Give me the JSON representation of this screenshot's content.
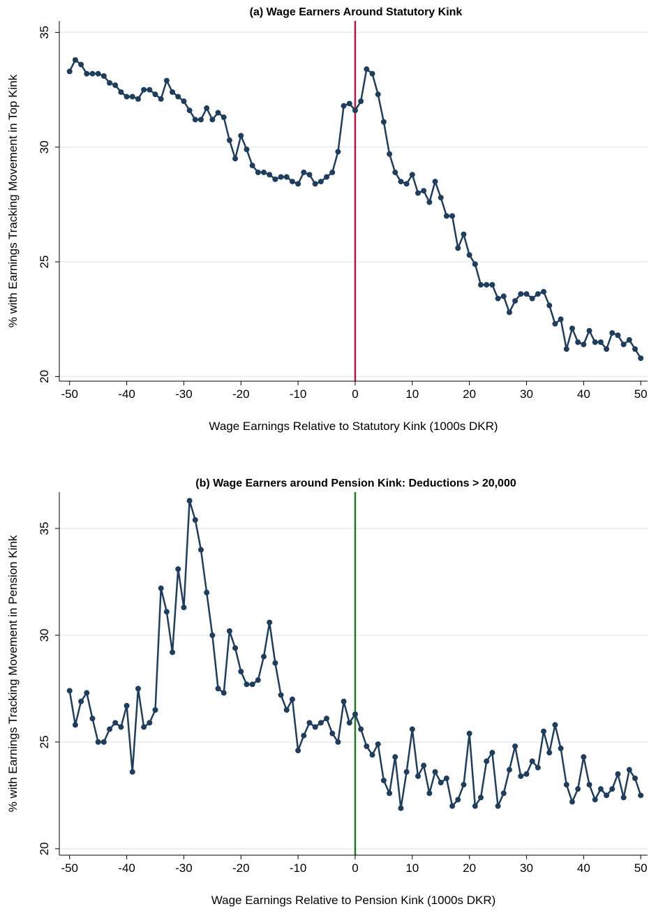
{
  "chart_data": [
    {
      "type": "line",
      "title": "(a) Wage Earners Around Statutory Kink",
      "x_label": "Wage Earnings Relative to Statutory Kink (1000s DKR)",
      "y_label": "% with Earnings Tracking Movement in Top Kink",
      "x": [
        -50,
        -49,
        -48,
        -47,
        -46,
        -45,
        -44,
        -43,
        -42,
        -41,
        -40,
        -39,
        -38,
        -37,
        -36,
        -35,
        -34,
        -33,
        -32,
        -31,
        -30,
        -29,
        -28,
        -27,
        -26,
        -25,
        -24,
        -23,
        -22,
        -21,
        -20,
        -19,
        -18,
        -17,
        -16,
        -15,
        -14,
        -13,
        -12,
        -11,
        -10,
        -9,
        -8,
        -7,
        -6,
        -5,
        -4,
        -3,
        -2,
        -1,
        0,
        1,
        2,
        3,
        4,
        5,
        6,
        7,
        8,
        9,
        10,
        11,
        12,
        13,
        14,
        15,
        16,
        17,
        18,
        19,
        20,
        21,
        22,
        23,
        24,
        25,
        26,
        27,
        28,
        29,
        30,
        31,
        32,
        33,
        34,
        35,
        36,
        37,
        38,
        39,
        40,
        41,
        42,
        43,
        44,
        45,
        46,
        47,
        48,
        49,
        50
      ],
      "series": [
        {
          "color": "#1f3d5c",
          "values": [
            33.3,
            33.8,
            33.6,
            33.2,
            33.2,
            33.2,
            33.1,
            32.8,
            32.7,
            32.4,
            32.2,
            32.2,
            32.1,
            32.5,
            32.5,
            32.3,
            32.1,
            32.9,
            32.4,
            32.2,
            32.0,
            31.6,
            31.2,
            31.2,
            31.7,
            31.2,
            31.5,
            31.3,
            30.3,
            29.5,
            30.5,
            29.9,
            29.2,
            28.9,
            28.9,
            28.8,
            28.6,
            28.7,
            28.7,
            28.5,
            28.4,
            28.9,
            28.8,
            28.4,
            28.5,
            28.7,
            28.9,
            29.8,
            31.8,
            31.9,
            31.6,
            32.0,
            33.4,
            33.2,
            32.3,
            31.1,
            29.7,
            28.9,
            28.5,
            28.4,
            28.8,
            28.0,
            28.1,
            27.6,
            28.5,
            27.8,
            27.0,
            27.0,
            25.6,
            26.2,
            25.3,
            24.9,
            24.0,
            24.0,
            24.0,
            23.4,
            23.5,
            22.8,
            23.3,
            23.6,
            23.6,
            23.4,
            23.6,
            23.7,
            23.1,
            22.3,
            22.5,
            21.2,
            22.1,
            21.5,
            21.4,
            22.0,
            21.5,
            21.5,
            21.2,
            21.9,
            21.8,
            21.4,
            21.6,
            21.2,
            20.8
          ]
        }
      ],
      "vline": 0,
      "vline_color": "#b5123f",
      "xlim": [
        -51.8,
        51.2
      ],
      "ylim": [
        19.8,
        35.5
      ],
      "xticks": [
        -50,
        -40,
        -30,
        -20,
        -10,
        0,
        10,
        20,
        30,
        40,
        50
      ],
      "yticks": [
        20,
        25,
        30,
        35
      ],
      "grid": true
    },
    {
      "type": "line",
      "title": "(b) Wage Earners around Pension Kink: Deductions > 20,000",
      "x_label": "Wage Earnings Relative to Pension Kink (1000s DKR)",
      "y_label": "% with Earnings Tracking Movement in Pension Kink",
      "x": [
        -50,
        -49,
        -48,
        -47,
        -46,
        -45,
        -44,
        -43,
        -42,
        -41,
        -40,
        -39,
        -38,
        -37,
        -36,
        -35,
        -34,
        -33,
        -32,
        -31,
        -30,
        -29,
        -28,
        -27,
        -26,
        -25,
        -24,
        -23,
        -22,
        -21,
        -20,
        -19,
        -18,
        -17,
        -16,
        -15,
        -14,
        -13,
        -12,
        -11,
        -10,
        -9,
        -8,
        -7,
        -6,
        -5,
        -4,
        -3,
        -2,
        -1,
        0,
        1,
        2,
        3,
        4,
        5,
        6,
        7,
        8,
        9,
        10,
        11,
        12,
        13,
        14,
        15,
        16,
        17,
        18,
        19,
        20,
        21,
        22,
        23,
        24,
        25,
        26,
        27,
        28,
        29,
        30,
        31,
        32,
        33,
        34,
        35,
        36,
        37,
        38,
        39,
        40,
        41,
        42,
        43,
        44,
        45,
        46,
        47,
        48,
        49,
        50
      ],
      "series": [
        {
          "color": "#1f3d5c",
          "values": [
            27.4,
            25.8,
            26.9,
            27.3,
            26.1,
            25.0,
            25.0,
            25.6,
            25.9,
            25.7,
            26.7,
            23.6,
            27.5,
            25.7,
            25.9,
            26.5,
            32.2,
            31.1,
            29.2,
            33.1,
            31.3,
            36.3,
            35.4,
            34.0,
            32.0,
            30.0,
            27.5,
            27.3,
            30.2,
            29.4,
            28.3,
            27.7,
            27.7,
            27.9,
            29.0,
            30.6,
            28.7,
            27.2,
            26.5,
            27.0,
            24.6,
            25.3,
            25.9,
            25.7,
            25.9,
            26.1,
            25.4,
            25.0,
            26.9,
            25.9,
            26.3,
            25.6,
            24.8,
            24.4,
            24.9,
            23.2,
            22.6,
            24.3,
            21.9,
            23.6,
            25.6,
            23.4,
            23.9,
            22.6,
            23.6,
            23.1,
            23.3,
            22.0,
            22.3,
            23.0,
            25.4,
            22.0,
            22.4,
            24.1,
            24.5,
            22.0,
            22.6,
            23.7,
            24.8,
            23.4,
            23.5,
            24.1,
            23.8,
            25.5,
            24.5,
            25.8,
            24.7,
            23.0,
            22.2,
            22.8,
            24.3,
            23.0,
            22.3,
            22.8,
            22.5,
            22.8,
            23.5,
            22.4,
            23.7,
            23.3,
            22.5
          ]
        }
      ],
      "vline": 0,
      "vline_color": "#1f7a1f",
      "xlim": [
        -51.8,
        51.2
      ],
      "ylim": [
        19.7,
        36.7
      ],
      "xticks": [
        -50,
        -40,
        -30,
        -20,
        -10,
        0,
        10,
        20,
        30,
        40,
        50
      ],
      "yticks": [
        20,
        25,
        30,
        35
      ],
      "grid": true
    }
  ]
}
